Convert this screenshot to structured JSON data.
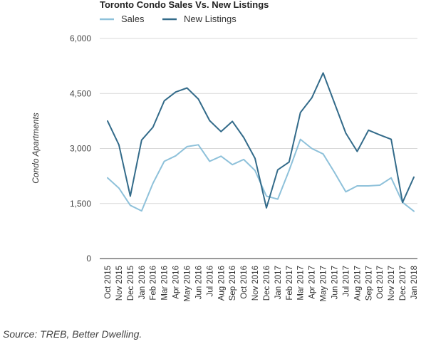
{
  "chart_data": {
    "type": "line",
    "title": "Toronto Condo Sales Vs. New Listings",
    "ylabel": "Condo Apartments",
    "xlabel": "",
    "ylim": [
      0,
      6000
    ],
    "yticks": [
      0,
      1500,
      3000,
      4500,
      6000
    ],
    "ytick_labels": [
      "0",
      "1,500",
      "3,000",
      "4,500",
      "6,000"
    ],
    "grid": true,
    "legend_position": "top-left",
    "categories": [
      "Oct 2015",
      "Nov 2015",
      "Dec 2015",
      "Jan 2016",
      "Feb 2016",
      "Mar 2016",
      "Apr 2016",
      "May 2016",
      "Jun 2016",
      "Jul 2016",
      "Aug 2016",
      "Sep 2016",
      "Oct 2016",
      "Nov 2016",
      "Dec 2016",
      "Jan 2017",
      "Feb 2017",
      "Mar 2017",
      "Apr 2017",
      "May 2017",
      "Jun 2017",
      "Jul 2017",
      "Aug 2017",
      "Sep 2017",
      "Oct 2017",
      "Nov 2017",
      "Dec 2017",
      "Jan 2018"
    ],
    "series": [
      {
        "name": "Sales",
        "color": "#8ec1da",
        "values": [
          2200,
          1920,
          1450,
          1300,
          2050,
          2650,
          2800,
          3050,
          3100,
          2650,
          2790,
          2560,
          2700,
          2400,
          1700,
          1620,
          2400,
          3250,
          3000,
          2850,
          2350,
          1820,
          1980,
          1980,
          2000,
          2200,
          1530,
          1290
        ]
      },
      {
        "name": "New Listings",
        "color": "#336b8a",
        "values": [
          3750,
          3100,
          1700,
          3230,
          3580,
          4300,
          4540,
          4650,
          4350,
          3760,
          3460,
          3740,
          3300,
          2730,
          1380,
          2420,
          2630,
          3980,
          4380,
          5060,
          4240,
          3420,
          2920,
          3500,
          3370,
          3250,
          1530,
          2220
        ]
      }
    ]
  },
  "source": "Source: TREB, Better Dwelling."
}
